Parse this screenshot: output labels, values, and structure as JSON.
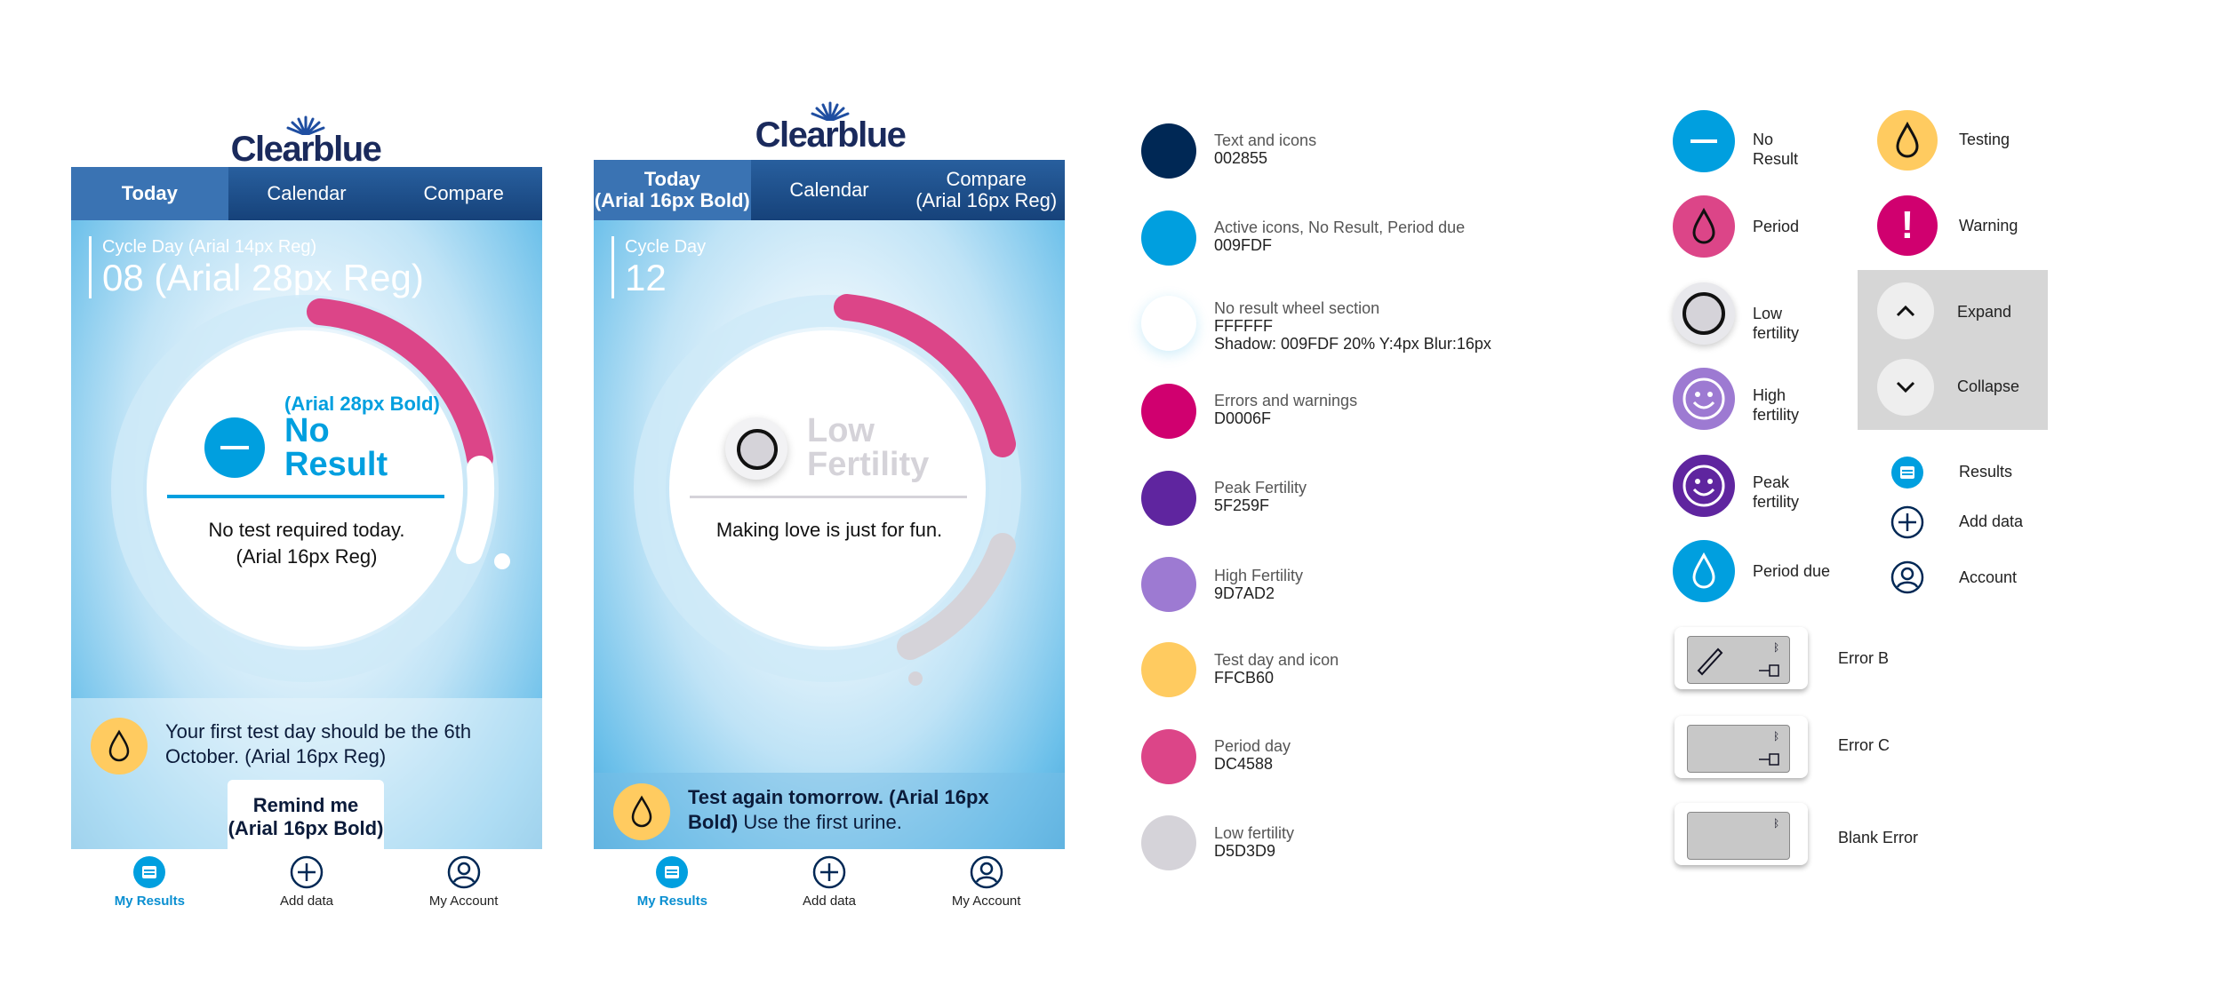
{
  "brand": {
    "logo_text": "Clearblue"
  },
  "screen1": {
    "tabs": [
      "Today",
      "Calendar",
      "Compare"
    ],
    "cycle_label": "Cycle Day (Arial 14px Reg)",
    "cycle_value": "08 (Arial 28px Reg)",
    "result_note": "(Arial 28px Bold)",
    "result_title": "No\nResult",
    "message": "No test required today.\n(Arial 16px Reg)",
    "panel_text": "Your first test day should be the 6th October. (Arial 16px Reg)",
    "remind_button": "Remind me\n(Arial 16px Bold)"
  },
  "screen2": {
    "tabs": [
      "Today\n(Arial 16px Bold)",
      "Calendar",
      "Compare\n(Arial 16px Reg)"
    ],
    "cycle_label": "Cycle Day",
    "cycle_value": "12",
    "result_title": "Low\nFertility",
    "message": "Making love is just for fun.",
    "panel_bold": "Test again tomorrow. (Arial 16px Bold)",
    "panel_reg": " Use the first urine."
  },
  "bottom_nav": [
    "My Results",
    "Add data",
    "My Account"
  ],
  "swatches": [
    {
      "label": "Text and icons",
      "hex": "002855",
      "color": "#002855"
    },
    {
      "label": "Active icons, No Result, Period due",
      "hex": "009FDF",
      "color": "#009FDF"
    },
    {
      "label": "No result wheel section",
      "hex": "FFFFFF",
      "extra": "Shadow: 009FDF 20% Y:4px Blur:16px",
      "color": "#FFFFFF"
    },
    {
      "label": "Errors and warnings",
      "hex": "D0006F",
      "color": "#D0006F"
    },
    {
      "label": "Peak Fertility",
      "hex": "5F259F",
      "color": "#5F259F"
    },
    {
      "label": "High Fertility",
      "hex": "9D7AD2",
      "color": "#9D7AD2"
    },
    {
      "label": "Test day and icon",
      "hex": "FFCB60",
      "color": "#FFCB60"
    },
    {
      "label": "Period day",
      "hex": "DC4588",
      "color": "#DC4588"
    },
    {
      "label": "Low fertility",
      "hex": "D5D3D9",
      "color": "#D5D3D9"
    }
  ],
  "icons_left": [
    {
      "label": "No\nResult",
      "icon": "minus-icon"
    },
    {
      "label": "Period",
      "icon": "drop-icon"
    },
    {
      "label": "Low\nfertility",
      "icon": "ring-icon"
    },
    {
      "label": "High\nfertility",
      "icon": "smile-icon"
    },
    {
      "label": "Peak\nfertility",
      "icon": "smile-icon"
    },
    {
      "label": "Period due",
      "icon": "drop-icon"
    }
  ],
  "icons_right": [
    {
      "label": "Testing",
      "icon": "drop-icon"
    },
    {
      "label": "Warning",
      "icon": "exclamation-icon"
    },
    {
      "label": "Expand",
      "icon": "chevron-up-icon"
    },
    {
      "label": "Collapse",
      "icon": "chevron-down-icon"
    },
    {
      "label": "Results",
      "icon": "results-icon"
    },
    {
      "label": "Add data",
      "icon": "plus-circle-icon"
    },
    {
      "label": "Account",
      "icon": "account-icon"
    }
  ],
  "errors": [
    "Error B",
    "Error C",
    "Blank Error"
  ]
}
